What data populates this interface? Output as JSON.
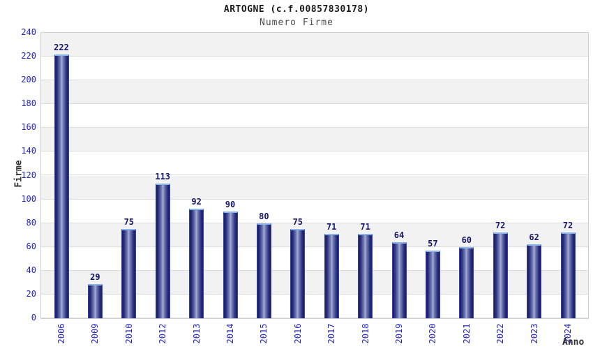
{
  "chart_data": {
    "type": "bar",
    "title": "ARTOGNE (c.f.00857830178)",
    "subtitle": "Numero Firme",
    "xlabel": "Anno",
    "ylabel": "Firme",
    "categories": [
      "2006",
      "2009",
      "2010",
      "2012",
      "2013",
      "2014",
      "2015",
      "2016",
      "2017",
      "2018",
      "2019",
      "2020",
      "2021",
      "2022",
      "2023",
      "2024"
    ],
    "values": [
      222,
      29,
      75,
      113,
      92,
      90,
      80,
      75,
      71,
      71,
      64,
      57,
      60,
      72,
      62,
      72
    ],
    "ylim": [
      0,
      240
    ],
    "ytick_step": 20,
    "grid": "horizontal-bands-alternating",
    "legend": "none",
    "colors": {
      "band_gray": "#f2f2f2",
      "band_white": "#ffffff",
      "grid_line": "#dcdcdc",
      "plot_border": "#d0d0d0",
      "bar_edge": "#3241b4",
      "bar_dark": "#1a1f60",
      "bar_light": "#a9afd6",
      "bar_top_cap": "#8ab4ea",
      "tick_label_blue": "#2323c8",
      "value_label_navy": "#15156b",
      "title_color": "#1a1a1a",
      "subtitle_color": "#4d4d4d",
      "axis_title_color": "#333333"
    }
  }
}
